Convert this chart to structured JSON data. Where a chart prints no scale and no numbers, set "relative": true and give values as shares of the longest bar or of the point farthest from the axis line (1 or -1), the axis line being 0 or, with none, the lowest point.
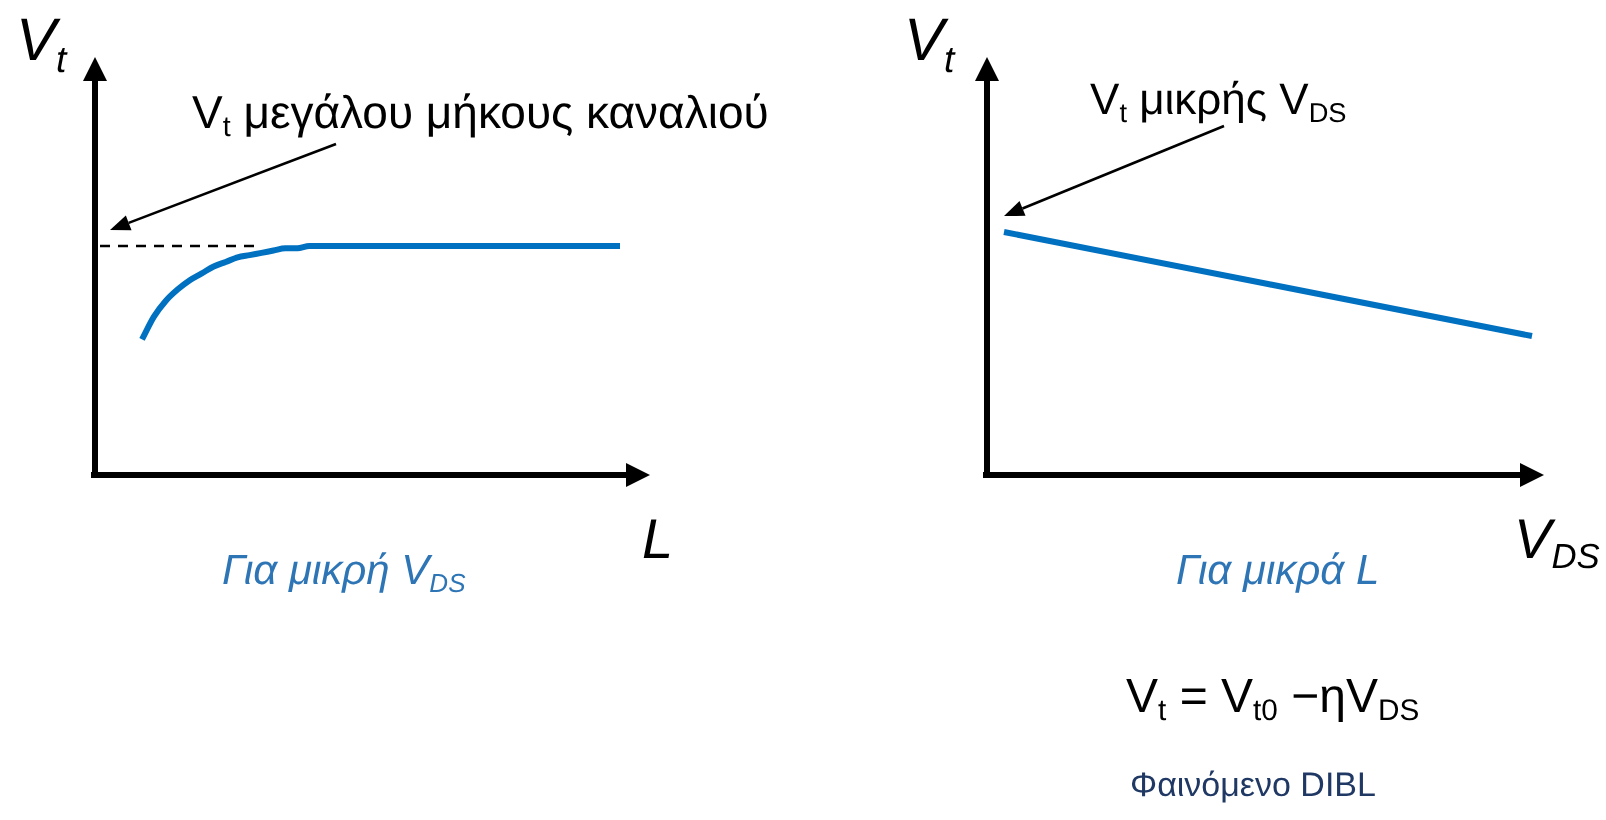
{
  "chart_data": [
    {
      "type": "line",
      "relative": true,
      "marker": "none",
      "xlabel": "L",
      "ylabel": "V$_{t}$",
      "categories": [
        null,
        null,
        null,
        null,
        null,
        null,
        null,
        null,
        null,
        null,
        null,
        null,
        null,
        null,
        null,
        null,
        null,
        null,
        null,
        null,
        null,
        null,
        null,
        null,
        null,
        null,
        null,
        null,
        null,
        null,
        null,
        null,
        null,
        null,
        null,
        null,
        null,
        null,
        null,
        null,
        null
      ],
      "series": [
        {
          "color": "#0070c0",
          "values": [
            0.59,
            0.69,
            0.76,
            0.81,
            0.85,
            0.88,
            0.91,
            0.93,
            0.95,
            0.96,
            0.97,
            0.98,
            0.99,
            0.99,
            1,
            1,
            1,
            1,
            1,
            1,
            1,
            1,
            1,
            1,
            1,
            1,
            1,
            1,
            1,
            1,
            1,
            1,
            1,
            1,
            1,
            1,
            1,
            1,
            1,
            1,
            1
          ]
        }
      ],
      "ref_lines": [
        {
          "axis": "y",
          "value": 1,
          "color": "#000000",
          "line_style": "dashed"
        }
      ],
      "annotations": [
        {
          "text": "V$_{t}$ μεγάλου μήκους καναλιού",
          "y": 1
        },
        "Για μικρή V$_{DS}$"
      ]
    },
    {
      "type": "line",
      "relative": true,
      "marker": "none",
      "xlabel": "V$_{DS}$",
      "ylabel": "V$_{t}$",
      "categories": [
        null,
        null
      ],
      "series": [
        {
          "color": "#0070c0",
          "values": [
            1,
            0.57
          ]
        }
      ],
      "annotations": [
        "V$_{t}$ μικρής V$_{DS}$",
        "Για μικρά L",
        "V$_{t}$ = V$_{t0}$ −ηV$_{DS}$",
        "Φαινόμενο DIBL"
      ]
    }
  ]
}
